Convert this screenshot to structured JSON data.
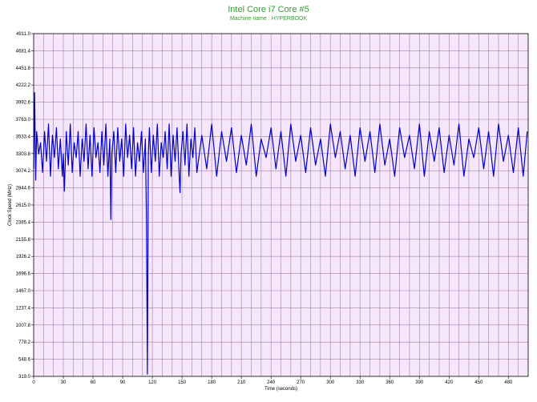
{
  "chart_data": {
    "type": "line",
    "title": "Intel Core i7 Core #5",
    "subtitle": "Machine name : HYPERBOOK",
    "xlabel": "Time (seconds)",
    "ylabel": "Clock Speed (MHz)",
    "xlim": [
      0,
      500
    ],
    "ylim": [
      319.0,
      4911.0
    ],
    "x_ticks": [
      "0",
      "30",
      "60",
      "90",
      "120",
      "150",
      "180",
      "210",
      "240",
      "270",
      "300",
      "330",
      "360",
      "390",
      "420",
      "450",
      "480"
    ],
    "y_ticks": [
      "4911.0",
      "4681.4",
      "4451.8",
      "4222.2",
      "3992.6",
      "3763.0",
      "3533.4",
      "3303.8",
      "3074.2",
      "2844.6",
      "2615.0",
      "2385.4",
      "2155.8",
      "1926.2",
      "1696.6",
      "1467.0",
      "1237.4",
      "1007.8",
      "778.2",
      "548.6",
      "319.0"
    ],
    "grid": true,
    "legend": "none",
    "colors": {
      "series": "#0000cc",
      "plot_background": "#f5e6fb",
      "grid": "#a07fa8",
      "title": "#2e9e2e"
    },
    "series": [
      {
        "x": [
          0,
          1,
          2,
          3,
          5,
          7,
          9,
          11,
          13,
          15,
          17,
          19,
          21,
          23,
          25,
          27,
          29,
          30,
          31,
          33,
          35,
          37,
          39,
          41,
          43,
          45,
          47,
          49,
          51,
          53,
          55,
          57,
          59,
          61,
          63,
          65,
          67,
          69,
          71,
          73,
          75,
          77,
          78,
          79,
          81,
          83,
          85,
          87,
          89,
          91,
          93,
          95,
          97,
          99,
          101,
          103,
          105,
          107,
          109,
          111,
          113,
          114,
          115,
          116,
          117,
          119,
          121,
          123,
          125,
          127,
          129,
          131,
          133,
          135,
          137,
          139,
          141,
          143,
          145,
          147,
          148,
          149,
          151,
          153,
          155,
          157,
          159,
          161,
          163,
          165,
          170,
          175,
          180,
          185,
          190,
          195,
          200,
          205,
          210,
          215,
          220,
          225,
          230,
          235,
          240,
          245,
          250,
          255,
          260,
          265,
          270,
          275,
          280,
          285,
          290,
          295,
          300,
          305,
          310,
          315,
          320,
          325,
          330,
          335,
          340,
          345,
          350,
          355,
          360,
          365,
          370,
          375,
          380,
          385,
          390,
          395,
          400,
          405,
          410,
          415,
          420,
          425,
          430,
          435,
          440,
          445,
          450,
          455,
          460,
          465,
          470,
          475,
          480,
          485,
          490,
          495,
          499
        ],
        "values": [
          3100,
          4120,
          2950,
          3600,
          3300,
          3450,
          3050,
          3600,
          3200,
          3700,
          3000,
          3550,
          3250,
          3650,
          3100,
          3500,
          3000,
          3300,
          2800,
          3600,
          3150,
          3700,
          3050,
          3450,
          3250,
          3600,
          3000,
          3500,
          3200,
          3700,
          3100,
          3550,
          3000,
          3650,
          3250,
          3450,
          3050,
          3600,
          3150,
          3700,
          3000,
          3500,
          2420,
          3300,
          3600,
          3050,
          3650,
          3200,
          3500,
          3000,
          3700,
          3250,
          3550,
          3100,
          3650,
          3000,
          3450,
          3200,
          3600,
          3050,
          3500,
          2450,
          350,
          3300,
          3650,
          3050,
          3550,
          3200,
          3700,
          3000,
          3450,
          3250,
          3600,
          3100,
          3700,
          3000,
          3550,
          3200,
          3650,
          3050,
          2780,
          3300,
          3600,
          3150,
          3700,
          3000,
          3500,
          3250,
          3650,
          3050,
          3550,
          3100,
          3700,
          3000,
          3600,
          3200,
          3650,
          3050,
          3550,
          3150,
          3700,
          3000,
          3500,
          3250,
          3650,
          3100,
          3600,
          3000,
          3700,
          3200,
          3550,
          3050,
          3650,
          3150,
          3500,
          3000,
          3700,
          3250,
          3600,
          3100,
          3550,
          3000,
          3650,
          3200,
          3600,
          3050,
          3700,
          3150,
          3500,
          3000,
          3650,
          3250,
          3550,
          3100,
          3700,
          3000,
          3600,
          3200,
          3650,
          3050,
          3550,
          3150,
          3700,
          3000,
          3500,
          3250,
          3650,
          3100,
          3600,
          3000,
          3700,
          3200,
          3550,
          3050,
          3650,
          3000,
          3600
        ]
      }
    ]
  }
}
